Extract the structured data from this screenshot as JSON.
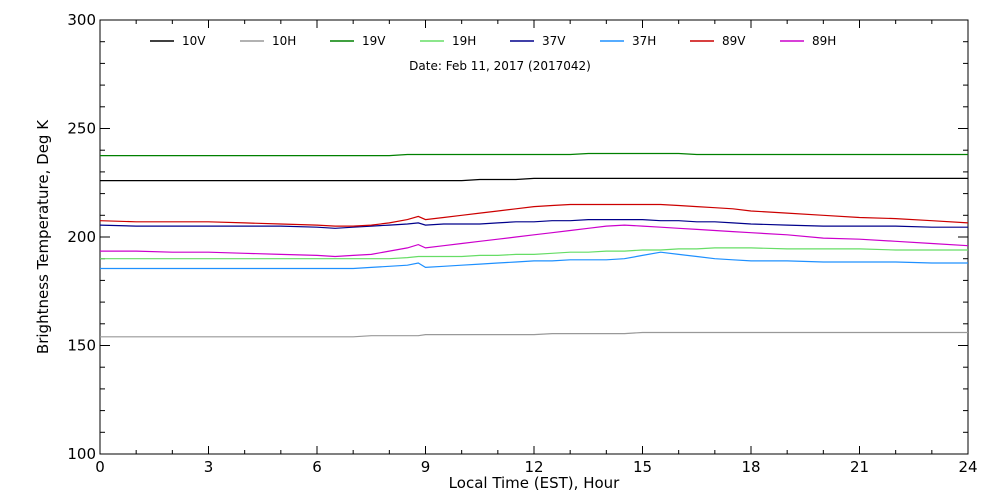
{
  "chart_data": {
    "type": "line",
    "annotation": "Date: Feb 11, 2017 (2017042)",
    "xlabel": "Local Time (EST), Hour",
    "ylabel": "Brightness Temperature, Deg K",
    "xlim": [
      0,
      24
    ],
    "ylim": [
      100,
      300
    ],
    "xticks": [
      0,
      3,
      6,
      9,
      12,
      15,
      18,
      21,
      24
    ],
    "yticks": [
      100,
      150,
      200,
      250,
      300
    ],
    "grid": false,
    "legend_placement": "top",
    "x": [
      0,
      1,
      2,
      3,
      4,
      5,
      6,
      6.5,
      7,
      7.5,
      8,
      8.5,
      8.8,
      9,
      9.5,
      10,
      10.5,
      11,
      11.5,
      12,
      12.5,
      13,
      13.5,
      14,
      14.5,
      15,
      15.5,
      16,
      16.5,
      17,
      17.5,
      18,
      19,
      20,
      21,
      22,
      23,
      24
    ],
    "series": [
      {
        "name": "10V",
        "color": "#000000",
        "values": [
          226,
          226,
          226,
          226,
          226,
          226,
          226,
          226,
          226,
          226,
          226,
          226,
          226,
          226,
          226,
          226,
          226.5,
          226.5,
          226.5,
          227,
          227,
          227,
          227,
          227,
          227,
          227,
          227,
          227,
          227,
          227,
          227,
          227,
          227,
          227,
          227,
          227,
          227,
          227
        ]
      },
      {
        "name": "10H",
        "color": "#999999",
        "values": [
          154,
          154,
          154,
          154,
          154,
          154,
          154,
          154,
          154,
          154.5,
          154.5,
          154.5,
          154.5,
          155,
          155,
          155,
          155,
          155,
          155,
          155,
          155.5,
          155.5,
          155.5,
          155.5,
          155.5,
          156,
          156,
          156,
          156,
          156,
          156,
          156,
          156,
          156,
          156,
          156,
          156,
          156
        ]
      },
      {
        "name": "19V",
        "color": "#008000",
        "values": [
          237.5,
          237.5,
          237.5,
          237.5,
          237.5,
          237.5,
          237.5,
          237.5,
          237.5,
          237.5,
          237.5,
          238,
          238,
          238,
          238,
          238,
          238,
          238,
          238,
          238,
          238,
          238,
          238.5,
          238.5,
          238.5,
          238.5,
          238.5,
          238.5,
          238,
          238,
          238,
          238,
          238,
          238,
          238,
          238,
          238,
          238
        ]
      },
      {
        "name": "19H",
        "color": "#66dd66",
        "values": [
          190,
          190,
          190,
          190,
          190,
          190,
          190,
          190,
          190,
          190,
          190,
          190.5,
          191,
          191,
          191,
          191,
          191.5,
          191.5,
          192,
          192,
          192.5,
          193,
          193,
          193.5,
          193.5,
          194,
          194,
          194.5,
          194.5,
          195,
          195,
          195,
          194.5,
          194.5,
          194.5,
          194,
          194,
          194
        ]
      },
      {
        "name": "37V",
        "color": "#00008b",
        "values": [
          205.5,
          205,
          205,
          205,
          205,
          205,
          204.5,
          204,
          204.5,
          205,
          205.5,
          206,
          206.5,
          205.5,
          206,
          206,
          206,
          206.5,
          207,
          207,
          207.5,
          207.5,
          208,
          208,
          208,
          208,
          207.5,
          207.5,
          207,
          207,
          206.5,
          206,
          205.5,
          205,
          205,
          205,
          204.5,
          204.5
        ]
      },
      {
        "name": "37H",
        "color": "#1e90ff",
        "values": [
          185.5,
          185.5,
          185.5,
          185.5,
          185.5,
          185.5,
          185.5,
          185.5,
          185.5,
          186,
          186.5,
          187,
          188,
          186,
          186.5,
          187,
          187.5,
          188,
          188.5,
          189,
          189,
          189.5,
          189.5,
          189.5,
          190,
          191.5,
          193,
          192,
          191,
          190,
          189.5,
          189,
          189,
          188.5,
          188.5,
          188.5,
          188,
          188
        ]
      },
      {
        "name": "89V",
        "color": "#cc0000",
        "values": [
          207.5,
          207,
          207,
          207,
          206.5,
          206,
          205.5,
          205,
          205,
          205.5,
          206.5,
          208,
          209.5,
          208,
          209,
          210,
          211,
          212,
          213,
          214,
          214.5,
          215,
          215,
          215,
          215,
          215,
          215,
          214.5,
          214,
          213.5,
          213,
          212,
          211,
          210,
          209,
          208.5,
          207.5,
          206.5
        ]
      },
      {
        "name": "89H",
        "color": "#cc00cc",
        "values": [
          193.5,
          193.5,
          193,
          193,
          192.5,
          192,
          191.5,
          191,
          191.5,
          192,
          193.5,
          195,
          196.5,
          195,
          196,
          197,
          198,
          199,
          200,
          201,
          202,
          203,
          204,
          205,
          205.5,
          205,
          204.5,
          204,
          203.5,
          203,
          202.5,
          202,
          201,
          199.5,
          199,
          198,
          197,
          196
        ]
      }
    ]
  }
}
